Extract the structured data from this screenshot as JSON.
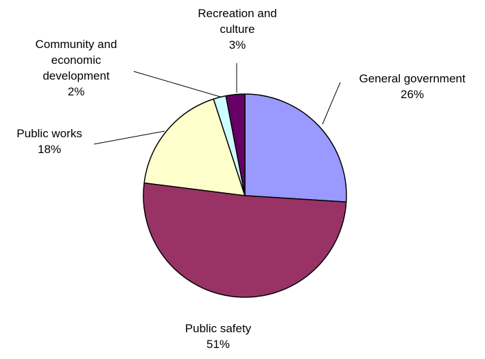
{
  "chart_data": {
    "type": "pie",
    "slices": [
      {
        "label_lines": [
          "General government"
        ],
        "value": 26,
        "pct": "26%",
        "color": "#9999ff"
      },
      {
        "label_lines": [
          "Public safety"
        ],
        "value": 51,
        "pct": "51%",
        "color": "#993366"
      },
      {
        "label_lines": [
          "Public works"
        ],
        "value": 18,
        "pct": "18%",
        "color": "#ffffcc"
      },
      {
        "label_lines": [
          "Community and",
          "economic",
          "development"
        ],
        "value": 2,
        "pct": "2%",
        "color": "#ccffff"
      },
      {
        "label_lines": [
          "Recreation and",
          "culture"
        ],
        "value": 3,
        "pct": "3%",
        "color": "#660066"
      }
    ],
    "start_direction": "top",
    "direction": "clockwise",
    "legend": "none",
    "data_labels": "outside-with-leader-lines"
  }
}
